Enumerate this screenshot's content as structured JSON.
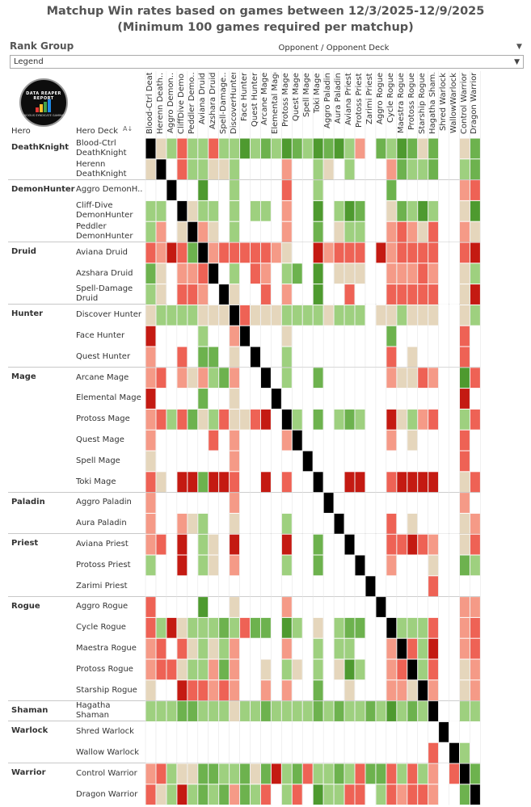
{
  "title": {
    "line1": "Matchup Win rates based on games between 12/3/2025-12/9/2025",
    "line2": "(Minimum 100 games required per matchup)"
  },
  "filter": {
    "label": "Rank Group",
    "value": "Legend"
  },
  "logo": {
    "text": "DATA REAPER REPORT",
    "subtext": "VICIOUS SYNDICATE GAMING"
  },
  "axis": {
    "opponent_label": "Opponent / Opponent Deck",
    "hero_header": "Hero",
    "deck_header": "Hero Deck"
  },
  "colors": {
    "DG": "#4e9a2f",
    "MG": "#6db24e",
    "LG": "#9ed07f",
    "BG": "#e5d6bc",
    "LR": "#f59a87",
    "MR": "#ee6255",
    "DR": "#c41a12",
    "NN": "#ffffff",
    "X": "#000000"
  },
  "chart_data": {
    "type": "heatmap",
    "title": "Matchup Win rates based on games between 12/3/2025-12/9/2025",
    "subtitle": "(Minimum 100 games required per matchup)",
    "xlabel": "Opponent / Opponent Deck",
    "ylabel": "Hero Deck",
    "scale": "DG=strongly favored, MG=favored, LG=slightly favored, BG=even, LR=slightly unfavored, MR=unfavored, DR=strongly unfavored, NN=no data, X=mirror",
    "groups": [
      {
        "hero": "DeathKnight",
        "decks": [
          "Blood-Ctrl DeathKnight",
          "Herenn DeathKnight"
        ]
      },
      {
        "hero": "DemonHunter",
        "decks": [
          "Aggro DemonH..",
          "Cliff-Dive DemonHunter",
          "Peddler DemonHunter"
        ]
      },
      {
        "hero": "Druid",
        "decks": [
          "Aviana Druid",
          "Azshara Druid",
          "Spell-Damage Druid"
        ]
      },
      {
        "hero": "Hunter",
        "decks": [
          "Discover Hunter",
          "Face Hunter",
          "Quest Hunter"
        ]
      },
      {
        "hero": "Mage",
        "decks": [
          "Arcane Mage",
          "Elemental Mage",
          "Protoss Mage",
          "Quest Mage",
          "Spell Mage",
          "Toki Mage"
        ]
      },
      {
        "hero": "Paladin",
        "decks": [
          "Aggro Paladin",
          "Aura Paladin"
        ]
      },
      {
        "hero": "Priest",
        "decks": [
          "Aviana Priest",
          "Protoss Priest",
          "Zarimi Priest"
        ]
      },
      {
        "hero": "Rogue",
        "decks": [
          "Aggro Rogue",
          "Cycle Rogue",
          "Maestra Rogue",
          "Protoss Rogue",
          "Starship Rogue"
        ]
      },
      {
        "hero": "Shaman",
        "decks": [
          "Hagatha Shaman"
        ]
      },
      {
        "hero": "Warlock",
        "decks": [
          "Shred Warlock",
          "Wallow Warlock"
        ]
      },
      {
        "hero": "Warrior",
        "decks": [
          "Control Warrior",
          "Dragon Warrior"
        ]
      }
    ],
    "columns": [
      "Blood-Ctrl Death..",
      "Herenn Death..",
      "Aggro Demon..",
      "CliffDive Demo..",
      "Peddler Demo..",
      "Aviana Druid",
      "Azshara Druid",
      "Spell-Damage..",
      "DiscoverHunter",
      "Face Hunter",
      "Quest Hunter",
      "Arcane Mage",
      "Elemental Mage",
      "Protoss Mage",
      "Quest Mage",
      "Spell Mage",
      "Toki Mage",
      "Aggro Paladin",
      "Aura Paladin",
      "Aviana Priest",
      "Protoss Priest",
      "Zarimi Priest",
      "Aggro Rogue",
      "Cycle Rogue",
      "Maestra Rogue",
      "Protoss Rogue",
      "Starship Rogue",
      "Hagatha Sham..",
      "Shred Warlock",
      "WallowWarlock",
      "Control Warrior",
      "Dragon Warrior"
    ],
    "rows": [
      [
        "X",
        "BG",
        "LG",
        "MR",
        "LG",
        "LG",
        "MR",
        "LG",
        "LG",
        "DG",
        "LG",
        "MG",
        "LG",
        "DG",
        "MG",
        "LG",
        "DG",
        "MG",
        "DG",
        "LG",
        "LR",
        "NN",
        "MG",
        "LG",
        "DG",
        "MG",
        "BG",
        "MG",
        "NN",
        "NN",
        "BG",
        "MG"
      ],
      [
        "BG",
        "X",
        "NN",
        "MR",
        "LG",
        "LG",
        "BG",
        "BG",
        "LG",
        "NN",
        "NN",
        "NN",
        "NN",
        "LR",
        "NN",
        "NN",
        "LG",
        "BG",
        "NN",
        "LG",
        "NN",
        "NN",
        "NN",
        "LR",
        "MG",
        "LG",
        "LG",
        "MG",
        "NN",
        "NN",
        "LG",
        "MG"
      ],
      [
        "NN",
        "NN",
        "X",
        "NN",
        "NN",
        "DG",
        "NN",
        "NN",
        "LG",
        "NN",
        "NN",
        "NN",
        "NN",
        "MR",
        "NN",
        "NN",
        "LG",
        "NN",
        "NN",
        "NN",
        "NN",
        "NN",
        "NN",
        "MG",
        "NN",
        "NN",
        "NN",
        "NN",
        "NN",
        "NN",
        "LR",
        "MR"
      ],
      [
        "LG",
        "LG",
        "NN",
        "X",
        "BG",
        "LG",
        "LG",
        "NN",
        "LG",
        "NN",
        "LG",
        "LG",
        "NN",
        "LR",
        "NN",
        "NN",
        "DG",
        "NN",
        "LG",
        "DG",
        "MG",
        "NN",
        "NN",
        "BG",
        "MG",
        "LG",
        "DG",
        "LG",
        "NN",
        "NN",
        "BG",
        "DG"
      ],
      [
        "LG",
        "LR",
        "NN",
        "BG",
        "X",
        "LR",
        "BG",
        "NN",
        "LG",
        "NN",
        "NN",
        "NN",
        "NN",
        "LR",
        "NN",
        "NN",
        "MG",
        "NN",
        "BG",
        "LG",
        "LG",
        "NN",
        "NN",
        "LR",
        "MR",
        "LR",
        "BG",
        "MR",
        "NN",
        "NN",
        "LR",
        "BG"
      ],
      [
        "MR",
        "LR",
        "DR",
        "MR",
        "MG",
        "X",
        "LR",
        "MR",
        "MR",
        "MR",
        "MR",
        "MR",
        "LR",
        "BG",
        "NN",
        "NN",
        "DR",
        "LR",
        "MR",
        "MR",
        "MR",
        "NN",
        "DR",
        "LR",
        "MR",
        "MR",
        "MR",
        "MR",
        "NN",
        "NN",
        "MR",
        "DR"
      ],
      [
        "MG",
        "BG",
        "NN",
        "LR",
        "LR",
        "MR",
        "X",
        "NN",
        "LG",
        "NN",
        "MR",
        "LR",
        "NN",
        "LG",
        "MG",
        "NN",
        "DG",
        "NN",
        "BG",
        "BG",
        "BG",
        "NN",
        "NN",
        "LR",
        "LR",
        "LR",
        "MR",
        "LR",
        "NN",
        "NN",
        "BG",
        "LG"
      ],
      [
        "LG",
        "BG",
        "NN",
        "MR",
        "MR",
        "LR",
        "NN",
        "X",
        "BG",
        "NN",
        "NN",
        "MR",
        "NN",
        "LR",
        "NN",
        "NN",
        "DG",
        "NN",
        "NN",
        "MR",
        "NN",
        "NN",
        "NN",
        "MR",
        "MR",
        "MR",
        "MR",
        "MR",
        "NN",
        "NN",
        "BG",
        "DR"
      ],
      [
        "BG",
        "LG",
        "LG",
        "LG",
        "LG",
        "BG",
        "BG",
        "BG",
        "X",
        "MR",
        "BG",
        "BG",
        "BG",
        "LG",
        "LG",
        "LG",
        "LG",
        "BG",
        "LG",
        "LG",
        "LG",
        "NN",
        "BG",
        "BG",
        "LG",
        "BG",
        "BG",
        "BG",
        "NN",
        "NN",
        "BG",
        "LG"
      ],
      [
        "DR",
        "NN",
        "NN",
        "NN",
        "NN",
        "LG",
        "NN",
        "NN",
        "LR",
        "X",
        "NN",
        "NN",
        "NN",
        "BG",
        "NN",
        "NN",
        "NN",
        "NN",
        "NN",
        "NN",
        "NN",
        "NN",
        "NN",
        "MG",
        "NN",
        "NN",
        "NN",
        "NN",
        "NN",
        "NN",
        "MR",
        "NN"
      ],
      [
        "LR",
        "NN",
        "NN",
        "MR",
        "NN",
        "MG",
        "MG",
        "NN",
        "BG",
        "NN",
        "X",
        "NN",
        "NN",
        "LG",
        "NN",
        "NN",
        "NN",
        "NN",
        "NN",
        "NN",
        "NN",
        "NN",
        "NN",
        "MR",
        "NN",
        "BG",
        "NN",
        "NN",
        "NN",
        "NN",
        "MR",
        "NN"
      ],
      [
        "LR",
        "MR",
        "NN",
        "LR",
        "BG",
        "LR",
        "LG",
        "MG",
        "LR",
        "NN",
        "NN",
        "X",
        "NN",
        "LG",
        "NN",
        "NN",
        "MG",
        "NN",
        "NN",
        "NN",
        "NN",
        "NN",
        "NN",
        "LR",
        "BG",
        "BG",
        "MR",
        "LR",
        "NN",
        "NN",
        "DG",
        "MR"
      ],
      [
        "DR",
        "NN",
        "NN",
        "NN",
        "NN",
        "MG",
        "NN",
        "NN",
        "BG",
        "NN",
        "NN",
        "NN",
        "X",
        "NN",
        "NN",
        "NN",
        "NN",
        "NN",
        "NN",
        "NN",
        "NN",
        "NN",
        "NN",
        "NN",
        "NN",
        "NN",
        "NN",
        "NN",
        "NN",
        "NN",
        "DR",
        "NN"
      ],
      [
        "LR",
        "MR",
        "LG",
        "MR",
        "MG",
        "BG",
        "LG",
        "MR",
        "BG",
        "BG",
        "MR",
        "DR",
        "NN",
        "X",
        "LG",
        "NN",
        "MG",
        "NN",
        "LG",
        "MG",
        "LG",
        "NN",
        "NN",
        "DR",
        "BG",
        "LG",
        "LR",
        "MR",
        "NN",
        "NN",
        "LG",
        "MR"
      ],
      [
        "LR",
        "NN",
        "NN",
        "NN",
        "NN",
        "NN",
        "MR",
        "NN",
        "LR",
        "NN",
        "NN",
        "NN",
        "NN",
        "LR",
        "X",
        "NN",
        "NN",
        "NN",
        "NN",
        "NN",
        "NN",
        "NN",
        "NN",
        "LR",
        "NN",
        "BG",
        "NN",
        "NN",
        "NN",
        "NN",
        "MR",
        "NN"
      ],
      [
        "BG",
        "NN",
        "NN",
        "NN",
        "NN",
        "NN",
        "NN",
        "NN",
        "LR",
        "NN",
        "NN",
        "NN",
        "NN",
        "NN",
        "NN",
        "X",
        "NN",
        "NN",
        "NN",
        "NN",
        "NN",
        "NN",
        "NN",
        "NN",
        "NN",
        "NN",
        "NN",
        "NN",
        "NN",
        "NN",
        "MR",
        "NN"
      ],
      [
        "MR",
        "BG",
        "NN",
        "DR",
        "DR",
        "MG",
        "DR",
        "DR",
        "MR",
        "NN",
        "NN",
        "DR",
        "NN",
        "MR",
        "NN",
        "NN",
        "X",
        "NN",
        "NN",
        "DR",
        "DR",
        "NN",
        "NN",
        "MR",
        "DR",
        "DR",
        "DR",
        "DR",
        "NN",
        "NN",
        "BG",
        "MR"
      ],
      [
        "LR",
        "NN",
        "NN",
        "NN",
        "NN",
        "NN",
        "NN",
        "NN",
        "LR",
        "NN",
        "NN",
        "NN",
        "NN",
        "NN",
        "NN",
        "NN",
        "NN",
        "X",
        "NN",
        "NN",
        "NN",
        "NN",
        "NN",
        "NN",
        "NN",
        "NN",
        "NN",
        "NN",
        "NN",
        "NN",
        "LR",
        "NN"
      ],
      [
        "LR",
        "NN",
        "NN",
        "LR",
        "BG",
        "LG",
        "NN",
        "NN",
        "BG",
        "NN",
        "NN",
        "NN",
        "NN",
        "LG",
        "NN",
        "NN",
        "NN",
        "NN",
        "X",
        "NN",
        "NN",
        "NN",
        "NN",
        "MR",
        "NN",
        "BG",
        "NN",
        "NN",
        "NN",
        "NN",
        "BG",
        "LR"
      ],
      [
        "LR",
        "MR",
        "NN",
        "DR",
        "NN",
        "LG",
        "BG",
        "NN",
        "DR",
        "NN",
        "NN",
        "NN",
        "NN",
        "DR",
        "NN",
        "NN",
        "MG",
        "NN",
        "NN",
        "X",
        "NN",
        "NN",
        "NN",
        "MR",
        "MR",
        "DR",
        "MR",
        "LR",
        "NN",
        "NN",
        "BG",
        "MR"
      ],
      [
        "LG",
        "NN",
        "NN",
        "DR",
        "NN",
        "LG",
        "BG",
        "NN",
        "LR",
        "NN",
        "NN",
        "NN",
        "NN",
        "LG",
        "NN",
        "NN",
        "MG",
        "NN",
        "NN",
        "NN",
        "X",
        "NN",
        "NN",
        "LR",
        "NN",
        "NN",
        "NN",
        "BG",
        "NN",
        "NN",
        "MG",
        "LG"
      ],
      [
        "NN",
        "NN",
        "NN",
        "NN",
        "NN",
        "NN",
        "NN",
        "NN",
        "NN",
        "NN",
        "NN",
        "NN",
        "NN",
        "NN",
        "NN",
        "NN",
        "NN",
        "NN",
        "NN",
        "NN",
        "NN",
        "X",
        "NN",
        "NN",
        "NN",
        "NN",
        "NN",
        "MR",
        "NN",
        "NN",
        "NN",
        "NN"
      ],
      [
        "MR",
        "NN",
        "NN",
        "NN",
        "NN",
        "DG",
        "NN",
        "NN",
        "BG",
        "NN",
        "NN",
        "NN",
        "NN",
        "LR",
        "NN",
        "NN",
        "NN",
        "NN",
        "NN",
        "NN",
        "NN",
        "NN",
        "X",
        "NN",
        "NN",
        "NN",
        "NN",
        "NN",
        "NN",
        "NN",
        "LR",
        "LR"
      ],
      [
        "MR",
        "LG",
        "DR",
        "BG",
        "LG",
        "LG",
        "LG",
        "MG",
        "LG",
        "MR",
        "MG",
        "MG",
        "NN",
        "DG",
        "LG",
        "NN",
        "BG",
        "NN",
        "LG",
        "MG",
        "MG",
        "NN",
        "NN",
        "X",
        "LG",
        "LG",
        "LG",
        "MR",
        "NN",
        "NN",
        "LR",
        "MR"
      ],
      [
        "LR",
        "MR",
        "NN",
        "MR",
        "BG",
        "LG",
        "BG",
        "LG",
        "LR",
        "NN",
        "NN",
        "NN",
        "NN",
        "LR",
        "NN",
        "NN",
        "LG",
        "NN",
        "LG",
        "LG",
        "NN",
        "NN",
        "NN",
        "LR",
        "X",
        "MR",
        "LG",
        "DR",
        "NN",
        "NN",
        "LR",
        "MR"
      ],
      [
        "LR",
        "MR",
        "MR",
        "BG",
        "LG",
        "LG",
        "LR",
        "MG",
        "LR",
        "NN",
        "NN",
        "BG",
        "NN",
        "LG",
        "BG",
        "NN",
        "LG",
        "NN",
        "BG",
        "DG",
        "LG",
        "NN",
        "NN",
        "LR",
        "MR",
        "X",
        "LG",
        "MR",
        "NN",
        "NN",
        "BG",
        "LR"
      ],
      [
        "BG",
        "NN",
        "NN",
        "DR",
        "MR",
        "MR",
        "LR",
        "MR",
        "LR",
        "NN",
        "NN",
        "LR",
        "NN",
        "LR",
        "NN",
        "NN",
        "MG",
        "NN",
        "NN",
        "BG",
        "NN",
        "NN",
        "NN",
        "LR",
        "LR",
        "BG",
        "X",
        "LR",
        "NN",
        "NN",
        "BG",
        "LR"
      ],
      [
        "LG",
        "LG",
        "LG",
        "MG",
        "MG",
        "LG",
        "LG",
        "LG",
        "BG",
        "LG",
        "LG",
        "MG",
        "LG",
        "LG",
        "LG",
        "LG",
        "MG",
        "LG",
        "MG",
        "LG",
        "LG",
        "MG",
        "LG",
        "DG",
        "LG",
        "MG",
        "LG",
        "X",
        "NN",
        "NN",
        "LG",
        "LG"
      ],
      [
        "NN",
        "NN",
        "NN",
        "NN",
        "NN",
        "NN",
        "NN",
        "NN",
        "NN",
        "NN",
        "NN",
        "NN",
        "NN",
        "NN",
        "NN",
        "NN",
        "NN",
        "NN",
        "NN",
        "NN",
        "NN",
        "NN",
        "NN",
        "NN",
        "NN",
        "NN",
        "NN",
        "NN",
        "X",
        "NN",
        "NN",
        "NN"
      ],
      [
        "NN",
        "NN",
        "NN",
        "NN",
        "NN",
        "NN",
        "NN",
        "NN",
        "NN",
        "NN",
        "NN",
        "NN",
        "NN",
        "NN",
        "NN",
        "NN",
        "NN",
        "NN",
        "NN",
        "NN",
        "NN",
        "NN",
        "NN",
        "NN",
        "NN",
        "NN",
        "NN",
        "MR",
        "NN",
        "X",
        "LG",
        "NN"
      ],
      [
        "LR",
        "MR",
        "LG",
        "BG",
        "BG",
        "MG",
        "MG",
        "LG",
        "LG",
        "MG",
        "BG",
        "MG",
        "DR",
        "LG",
        "MG",
        "MR",
        "LG",
        "LG",
        "MG",
        "LG",
        "MR",
        "MG",
        "MG",
        "MR",
        "LG",
        "MR",
        "LG",
        "LR",
        "NN",
        "MR",
        "X",
        "MG"
      ],
      [
        "MR",
        "BG",
        "LG",
        "DR",
        "LG",
        "MG",
        "LG",
        "MG",
        "LR",
        "MG",
        "LG",
        "MR",
        "NN",
        "LG",
        "MR",
        "NN",
        "DG",
        "LG",
        "LG",
        "MR",
        "MR",
        "NN",
        "LG",
        "MR",
        "LR",
        "MR",
        "MR",
        "LR",
        "NN",
        "NN",
        "MG",
        "X"
      ]
    ]
  }
}
